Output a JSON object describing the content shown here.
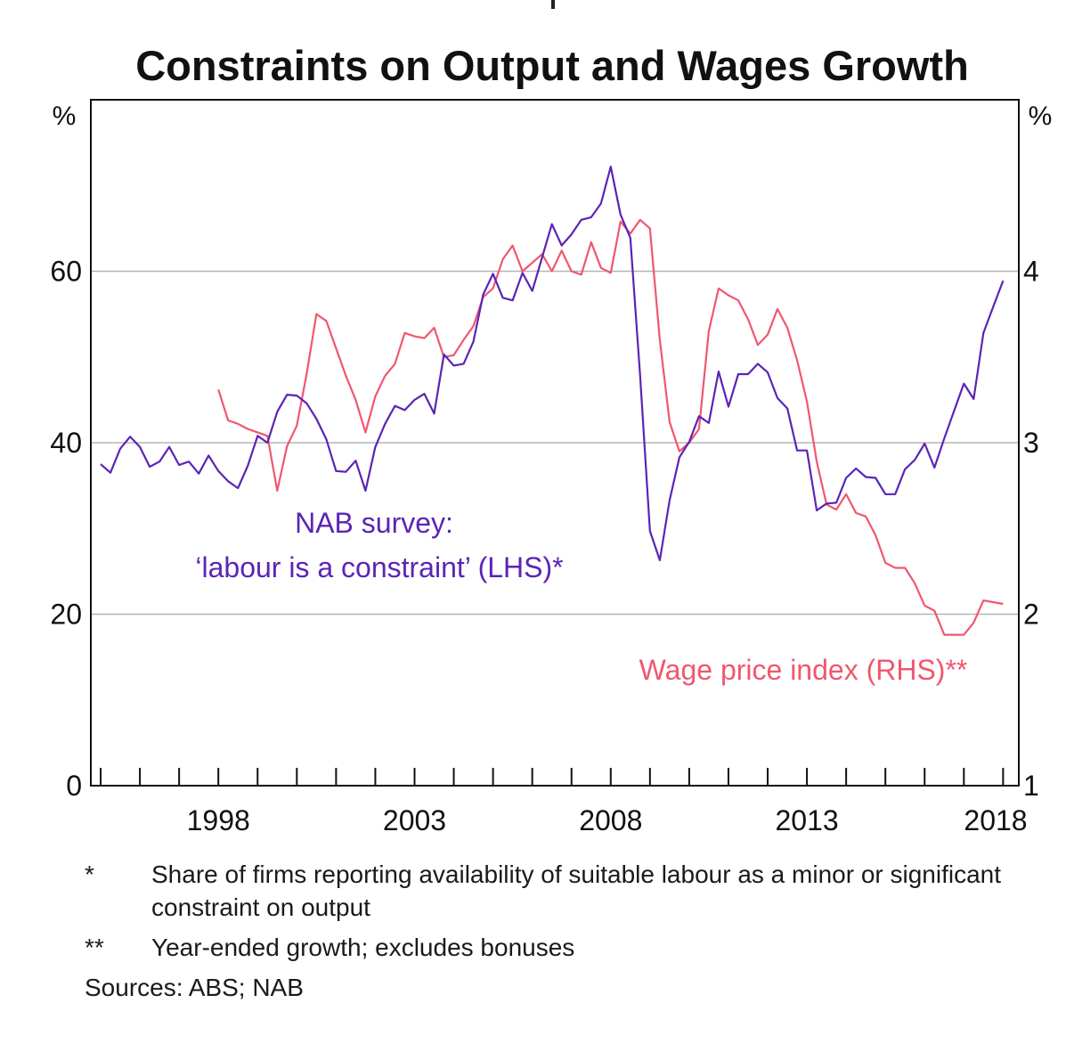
{
  "chart_data": {
    "type": "line",
    "title": "Constraints on Output and Wages Growth",
    "left_axis": {
      "unit_label": "%",
      "range": [
        0,
        80
      ],
      "ticks": [
        0,
        20,
        40,
        60
      ]
    },
    "right_axis": {
      "unit_label": "%",
      "range": [
        1,
        5
      ],
      "ticks": [
        1,
        2,
        3,
        4
      ]
    },
    "x_axis": {
      "range": [
        1994.75,
        2018.4
      ],
      "tick_labels": [
        "1998",
        "2003",
        "2008",
        "2013",
        "2018"
      ],
      "tick_label_years": [
        1998,
        2003,
        2008,
        2013,
        2018
      ]
    },
    "gridlines": [
      20,
      40,
      60
    ],
    "series": [
      {
        "name": "NAB survey: 'labour is a constraint' (LHS)*",
        "axis": "left",
        "color": "#5b24b6",
        "x": [
          1995.0,
          1995.25,
          1995.5,
          1995.75,
          1996.0,
          1996.25,
          1996.5,
          1996.75,
          1997.0,
          1997.25,
          1997.5,
          1997.75,
          1998.0,
          1998.25,
          1998.5,
          1998.75,
          1999.0,
          1999.25,
          1999.5,
          1999.75,
          2000.0,
          2000.25,
          2000.5,
          2000.75,
          2001.0,
          2001.25,
          2001.5,
          2001.75,
          2002.0,
          2002.25,
          2002.5,
          2002.75,
          2003.0,
          2003.25,
          2003.5,
          2003.75,
          2004.0,
          2004.25,
          2004.5,
          2004.75,
          2005.0,
          2005.25,
          2005.5,
          2005.75,
          2006.0,
          2006.25,
          2006.5,
          2006.75,
          2007.0,
          2007.25,
          2007.5,
          2007.75,
          2008.0,
          2008.25,
          2008.5,
          2008.75,
          2009.0,
          2009.25,
          2009.5,
          2009.75,
          2010.0,
          2010.25,
          2010.5,
          2010.75,
          2011.0,
          2011.25,
          2011.5,
          2011.75,
          2012.0,
          2012.25,
          2012.5,
          2012.75,
          2013.0,
          2013.25,
          2013.5,
          2013.75,
          2014.0,
          2014.25,
          2014.5,
          2014.75,
          2015.0,
          2015.25,
          2015.5,
          2015.75,
          2016.0,
          2016.25,
          2016.5,
          2016.75,
          2017.0,
          2017.25,
          2017.5,
          2017.75,
          2018.0
        ],
        "values": [
          37.5,
          36.5,
          39.3,
          40.7,
          39.5,
          37.2,
          37.8,
          39.5,
          37.4,
          37.8,
          36.4,
          38.5,
          36.7,
          35.5,
          34.7,
          37.3,
          40.8,
          40.0,
          43.6,
          45.6,
          45.5,
          44.6,
          42.8,
          40.4,
          36.7,
          36.6,
          37.9,
          34.4,
          39.5,
          42.2,
          44.3,
          43.8,
          45.0,
          45.7,
          43.4,
          50.3,
          49.0,
          49.2,
          51.8,
          57.3,
          59.7,
          56.9,
          56.6,
          59.8,
          57.7,
          61.6,
          65.5,
          63.0,
          64.3,
          66.0,
          66.3,
          67.9,
          72.2,
          66.6,
          63.9,
          47.8,
          29.7,
          26.3,
          33.3,
          38.3,
          40.1,
          43.1,
          42.3,
          48.3,
          44.2,
          48.0,
          48.0,
          49.2,
          48.2,
          45.2,
          44.0,
          39.1,
          39.1,
          32.1,
          32.9,
          33.0,
          35.9,
          37.0,
          36.0,
          35.9,
          34.0,
          34.0,
          36.9,
          38.0,
          39.9,
          37.1,
          40.5,
          43.7,
          46.9,
          45.1,
          52.8,
          55.9,
          58.9
        ]
      },
      {
        "name": "Wage price index (RHS)**",
        "axis": "right",
        "color": "#f0576e",
        "x": [
          1998.0,
          1998.25,
          1998.5,
          1998.75,
          1999.0,
          1999.25,
          1999.5,
          1999.75,
          2000.0,
          2000.25,
          2000.5,
          2000.75,
          2001.0,
          2001.25,
          2001.5,
          2001.75,
          2002.0,
          2002.25,
          2002.5,
          2002.75,
          2003.0,
          2003.25,
          2003.5,
          2003.75,
          2004.0,
          2004.25,
          2004.5,
          2004.75,
          2005.0,
          2005.25,
          2005.5,
          2005.75,
          2006.0,
          2006.25,
          2006.5,
          2006.75,
          2007.0,
          2007.25,
          2007.5,
          2007.75,
          2008.0,
          2008.25,
          2008.5,
          2008.75,
          2009.0,
          2009.25,
          2009.5,
          2009.75,
          2010.0,
          2010.25,
          2010.5,
          2010.75,
          2011.0,
          2011.25,
          2011.5,
          2011.75,
          2012.0,
          2012.25,
          2012.5,
          2012.75,
          2013.0,
          2013.25,
          2013.5,
          2013.75,
          2014.0,
          2014.25,
          2014.5,
          2014.75,
          2015.0,
          2015.25,
          2015.5,
          2015.75,
          2016.0,
          2016.25,
          2016.5,
          2016.75,
          2017.0,
          2017.25,
          2017.5,
          2017.75,
          2018.0
        ],
        "values": [
          3.31,
          3.13,
          3.11,
          3.08,
          3.06,
          3.04,
          2.72,
          2.98,
          3.1,
          3.4,
          3.75,
          3.71,
          3.55,
          3.39,
          3.25,
          3.06,
          3.27,
          3.39,
          3.46,
          3.64,
          3.62,
          3.61,
          3.67,
          3.5,
          3.51,
          3.6,
          3.68,
          3.85,
          3.9,
          4.07,
          4.15,
          4.0,
          4.05,
          4.1,
          4.0,
          4.12,
          4.0,
          3.98,
          4.17,
          4.02,
          3.99,
          4.29,
          4.22,
          4.3,
          4.25,
          3.6,
          3.12,
          2.95,
          3.0,
          3.08,
          3.65,
          3.9,
          3.86,
          3.83,
          3.72,
          3.57,
          3.63,
          3.78,
          3.67,
          3.48,
          3.24,
          2.89,
          2.64,
          2.61,
          2.7,
          2.59,
          2.57,
          2.46,
          2.3,
          2.27,
          2.27,
          2.18,
          2.05,
          2.02,
          1.88,
          1.88,
          1.88,
          1.95,
          2.08,
          2.07,
          2.06
        ]
      }
    ],
    "annotations": {
      "nab_line1": "NAB survey:",
      "nab_line2": "‘labour is a constraint’ (LHS)*",
      "wpi": "Wage price index (RHS)**"
    }
  },
  "footnotes": [
    {
      "mark": "*",
      "text": "Share of firms reporting availability of suitable labour as a minor or significant constraint on output"
    },
    {
      "mark": "**",
      "text": "Year-ended growth; excludes bonuses"
    }
  ],
  "sources": "Sources:  ABS; NAB"
}
